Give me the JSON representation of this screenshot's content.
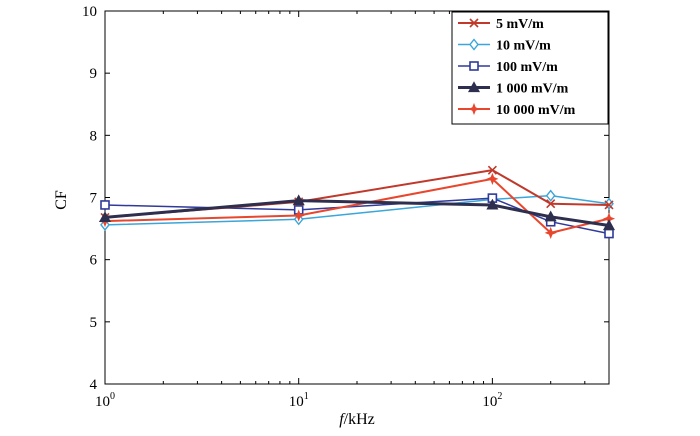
{
  "chart_data": {
    "type": "line",
    "title": "",
    "xlabel_italic": "f",
    "xlabel_rest": "/kHz",
    "ylabel": "CF",
    "xscale": "log",
    "xlim": [
      1,
      400
    ],
    "ylim": [
      4,
      10
    ],
    "yticks": [
      4,
      5,
      6,
      7,
      8,
      9,
      10
    ],
    "xticks": [
      {
        "value": 1,
        "base": "10",
        "exp": "0"
      },
      {
        "value": 10,
        "base": "10",
        "exp": "1"
      },
      {
        "value": 100,
        "base": "10",
        "exp": "2"
      }
    ],
    "grid": false,
    "legend_position": "top-right",
    "x": [
      1,
      10,
      100,
      200,
      400
    ],
    "series": [
      {
        "name": "5 mV/m",
        "color": "#c0392b",
        "marker": "x",
        "linewidth": 2,
        "values": [
          6.68,
          6.93,
          7.44,
          6.9,
          6.88
        ]
      },
      {
        "name": "10 mV/m",
        "color": "#3aa6d9",
        "marker": "diamond",
        "linewidth": 1.5,
        "values": [
          6.56,
          6.65,
          6.97,
          7.03,
          6.9
        ]
      },
      {
        "name": "100 mV/m",
        "color": "#2f3a9a",
        "marker": "square",
        "linewidth": 1.5,
        "values": [
          6.88,
          6.8,
          6.99,
          6.61,
          6.42
        ]
      },
      {
        "name": "1 000 mV/m",
        "color": "#2e2e4f",
        "marker": "triangle",
        "linewidth": 3,
        "values": [
          6.68,
          6.95,
          6.88,
          6.69,
          6.55
        ]
      },
      {
        "name": "10 000 mV/m",
        "color": "#e8472e",
        "marker": "star",
        "linewidth": 2,
        "values": [
          6.62,
          6.71,
          7.3,
          6.43,
          6.66
        ]
      }
    ]
  }
}
